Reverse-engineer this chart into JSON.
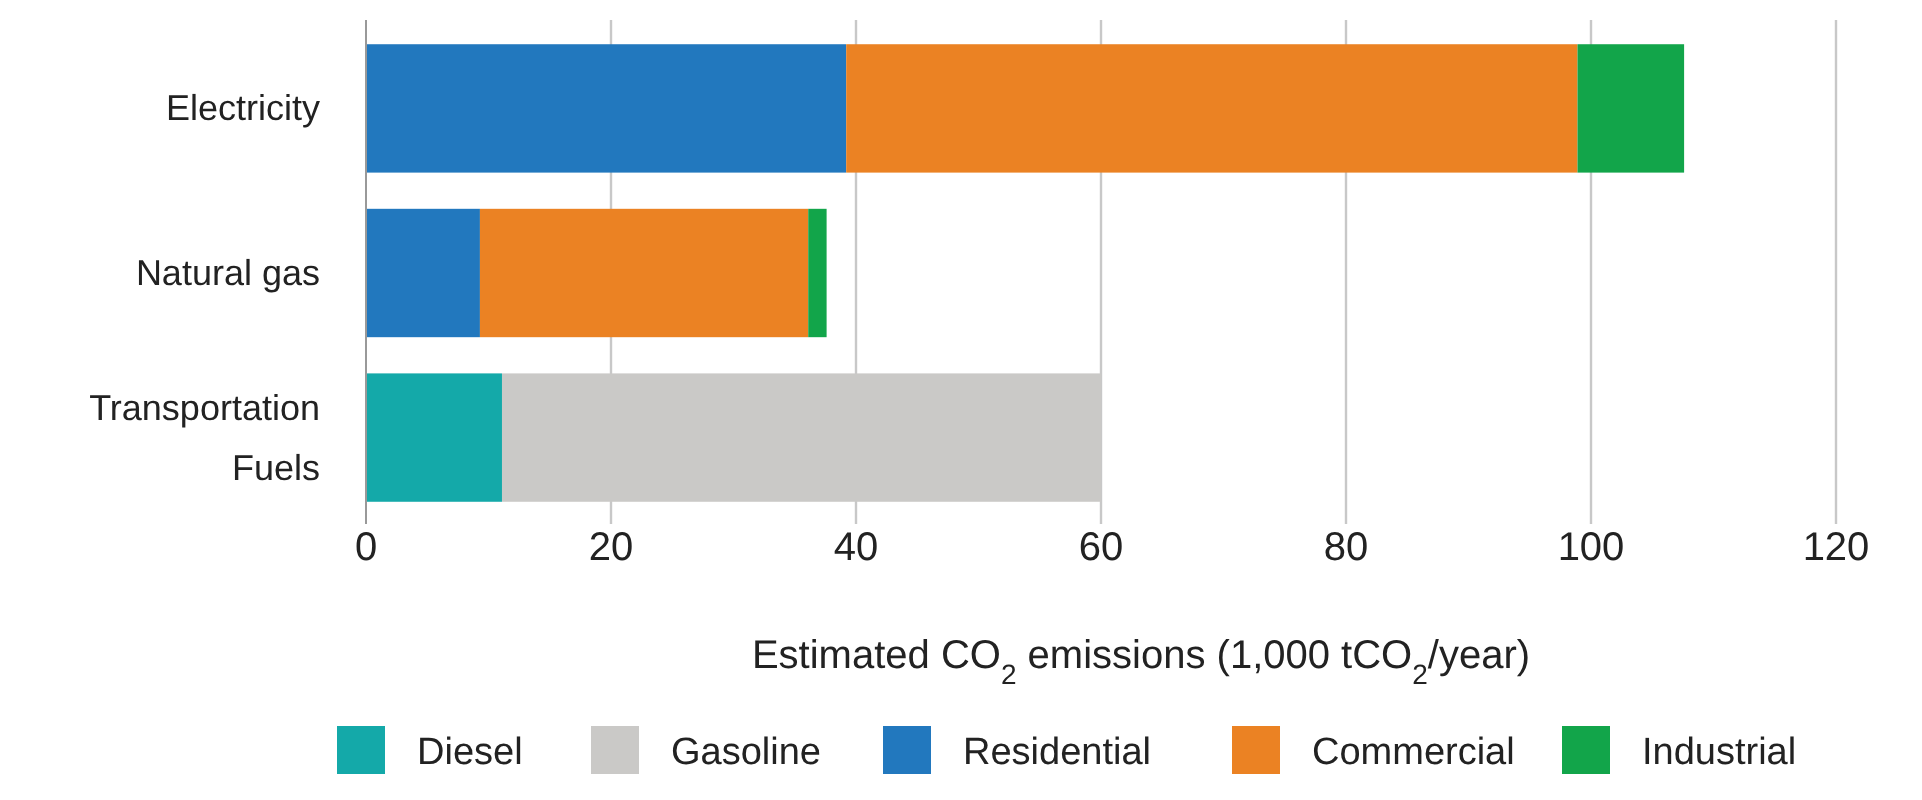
{
  "chart_data": {
    "type": "bar",
    "orientation": "horizontal",
    "stacked": true,
    "xlabel": "Estimated CO$_{2}$ emissions (1,000 tCO$_{2}$/year)",
    "categories": [
      "Electricity",
      "Natural gas",
      "Transportation Fuels"
    ],
    "series": [
      {
        "name": "Diesel",
        "color": "#14a9a9",
        "values": [
          null,
          null,
          11.1
        ]
      },
      {
        "name": "Gasoline",
        "color": "#cac9c7",
        "values": [
          null,
          null,
          48.9
        ]
      },
      {
        "name": "Residential",
        "color": "#2278be",
        "values": [
          39.2,
          9.3,
          null
        ]
      },
      {
        "name": "Commercial",
        "color": "#eb8223",
        "values": [
          59.7,
          26.8,
          null
        ]
      },
      {
        "name": "Industrial",
        "color": "#12a54a",
        "values": [
          8.7,
          1.5,
          null
        ]
      }
    ],
    "xlim": [
      0,
      120
    ],
    "xticks": [
      0,
      20,
      40,
      60,
      80,
      100,
      120
    ],
    "grid": "x",
    "legend": "bottom"
  }
}
